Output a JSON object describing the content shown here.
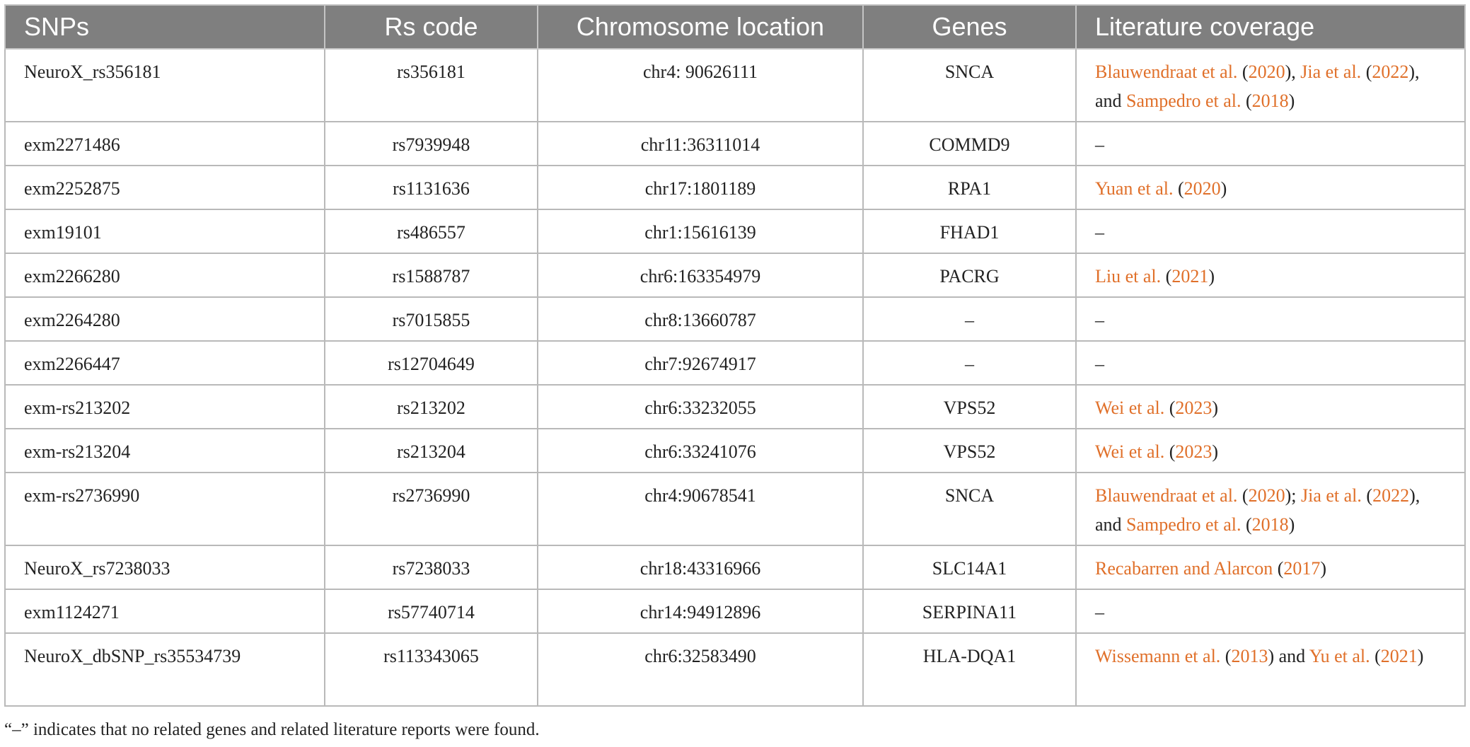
{
  "table": {
    "headers": [
      "SNPs",
      "Rs code",
      "Chromosome location",
      "Genes",
      "Literature coverage"
    ],
    "rows": [
      {
        "snp": "NeuroX_rs356181",
        "rs": "rs356181",
        "chr": "chr4: 90626111",
        "gene": "SNCA",
        "lit": [
          {
            "t": "Blauwendraat et al.",
            "ref": true
          },
          {
            "t": " (",
            "ref": false
          },
          {
            "t": "2020",
            "ref": true
          },
          {
            "t": "), ",
            "ref": false
          },
          {
            "t": "Jia et al.",
            "ref": true
          },
          {
            "t": " (",
            "ref": false
          },
          {
            "t": "2022",
            "ref": true
          },
          {
            "t": "), and ",
            "ref": false
          },
          {
            "t": "Sampedro et al.",
            "ref": true
          },
          {
            "t": " (",
            "ref": false
          },
          {
            "t": "2018",
            "ref": true
          },
          {
            "t": ")",
            "ref": false
          }
        ]
      },
      {
        "snp": "exm2271486",
        "rs": "rs7939948",
        "chr": "chr11:36311014",
        "gene": "COMMD9",
        "lit": [
          {
            "t": "–",
            "ref": false
          }
        ]
      },
      {
        "snp": "exm2252875",
        "rs": "rs1131636",
        "chr": "chr17:1801189",
        "gene": "RPA1",
        "lit": [
          {
            "t": "Yuan et al.",
            "ref": true
          },
          {
            "t": " (",
            "ref": false
          },
          {
            "t": "2020",
            "ref": true
          },
          {
            "t": ")",
            "ref": false
          }
        ]
      },
      {
        "snp": "exm19101",
        "rs": "rs486557",
        "chr": "chr1:15616139",
        "gene": "FHAD1",
        "lit": [
          {
            "t": "–",
            "ref": false
          }
        ]
      },
      {
        "snp": "exm2266280",
        "rs": "rs1588787",
        "chr": "chr6:163354979",
        "gene": "PACRG",
        "lit": [
          {
            "t": "Liu et al.",
            "ref": true
          },
          {
            "t": " (",
            "ref": false
          },
          {
            "t": "2021",
            "ref": true
          },
          {
            "t": ")",
            "ref": false
          }
        ]
      },
      {
        "snp": "exm2264280",
        "rs": "rs7015855",
        "chr": "chr8:13660787",
        "gene": "–",
        "lit": [
          {
            "t": "–",
            "ref": false
          }
        ]
      },
      {
        "snp": "exm2266447",
        "rs": "rs12704649",
        "chr": "chr7:92674917",
        "gene": "–",
        "lit": [
          {
            "t": "–",
            "ref": false
          }
        ]
      },
      {
        "snp": "exm-rs213202",
        "rs": "rs213202",
        "chr": "chr6:33232055",
        "gene": "VPS52",
        "lit": [
          {
            "t": "Wei et al.",
            "ref": true
          },
          {
            "t": " (",
            "ref": false
          },
          {
            "t": "2023",
            "ref": true
          },
          {
            "t": ")",
            "ref": false
          }
        ]
      },
      {
        "snp": "exm-rs213204",
        "rs": "rs213204",
        "chr": "chr6:33241076",
        "gene": "VPS52",
        "lit": [
          {
            "t": "Wei et al.",
            "ref": true
          },
          {
            "t": " (",
            "ref": false
          },
          {
            "t": "2023",
            "ref": true
          },
          {
            "t": ")",
            "ref": false
          }
        ]
      },
      {
        "snp": "exm-rs2736990",
        "rs": "rs2736990",
        "chr": "chr4:90678541",
        "gene": "SNCA",
        "lit": [
          {
            "t": "Blauwendraat et al.",
            "ref": true
          },
          {
            "t": " (",
            "ref": false
          },
          {
            "t": "2020",
            "ref": true
          },
          {
            "t": "); ",
            "ref": false
          },
          {
            "t": "Jia et al.",
            "ref": true
          },
          {
            "t": " (",
            "ref": false
          },
          {
            "t": "2022",
            "ref": true
          },
          {
            "t": "), and ",
            "ref": false
          },
          {
            "t": "Sampedro et al.",
            "ref": true
          },
          {
            "t": " (",
            "ref": false
          },
          {
            "t": "2018",
            "ref": true
          },
          {
            "t": ")",
            "ref": false
          }
        ]
      },
      {
        "snp": "NeuroX_rs7238033",
        "rs": "rs7238033",
        "chr": "chr18:43316966",
        "gene": "SLC14A1",
        "lit": [
          {
            "t": "Recabarren and Alarcon",
            "ref": true
          },
          {
            "t": " (",
            "ref": false
          },
          {
            "t": "2017",
            "ref": true
          },
          {
            "t": ")",
            "ref": false
          }
        ]
      },
      {
        "snp": "exm1124271",
        "rs": "rs57740714",
        "chr": "chr14:94912896",
        "gene": "SERPINA11",
        "lit": [
          {
            "t": "–",
            "ref": false
          }
        ]
      },
      {
        "snp": "NeuroX_dbSNP_rs35534739",
        "rs": "rs113343065",
        "chr": "chr6:32583490",
        "gene": "HLA-DQA1",
        "lit": [
          {
            "t": "Wissemann et al.",
            "ref": true
          },
          {
            "t": " (",
            "ref": false
          },
          {
            "t": "2013",
            "ref": true
          },
          {
            "t": ") and ",
            "ref": false
          },
          {
            "t": "Yu et al.",
            "ref": true
          },
          {
            "t": " (",
            "ref": false
          },
          {
            "t": "2021",
            "ref": true
          },
          {
            "t": ")",
            "ref": false
          }
        ]
      }
    ]
  },
  "footnote": "“–” indicates that no related genes and related literature reports were found.",
  "colors": {
    "header_bg": "#7f7f7f",
    "reference_link": "#e0702a"
  }
}
